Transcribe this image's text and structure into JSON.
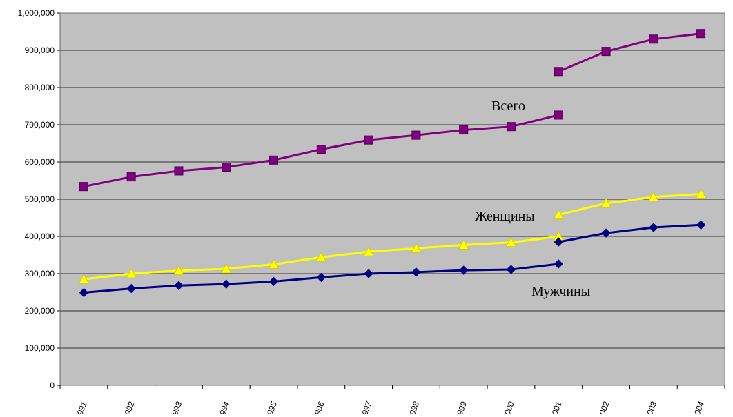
{
  "chart_data": {
    "type": "line",
    "title": "",
    "xlabel": "",
    "ylabel": "",
    "ylim": [
      0,
      1000000
    ],
    "y_ticks": [
      0,
      100000,
      200000,
      300000,
      400000,
      500000,
      600000,
      700000,
      800000,
      900000,
      1000000
    ],
    "y_tick_labels": [
      "0",
      "100,000",
      "200,000",
      "300,000",
      "400,000",
      "500,000",
      "600,000",
      "700,000",
      "800,000",
      "900,000",
      "1,000,000"
    ],
    "categories": [
      "1991",
      "1992",
      "1993",
      "1994",
      "1995",
      "1996",
      "1997",
      "1998",
      "1999",
      "2000",
      "2001",
      "2002",
      "2003",
      "2004"
    ],
    "grid": "horizontal",
    "legend": "none",
    "plot_background": "#c0c0c0",
    "series": [
      {
        "name": "Всего",
        "color": "#800080",
        "marker": "square",
        "segments": [
          {
            "x": [
              "1991",
              "1992",
              "1993",
              "1994",
              "1995",
              "1996",
              "1997",
              "1998",
              "1999",
              "2000",
              "2001"
            ],
            "values": [
              534000,
              560000,
              576000,
              586000,
              605000,
              634000,
              659000,
              672000,
              686000,
              695000,
              726000
            ]
          },
          {
            "x": [
              "2001",
              "2002",
              "2003",
              "2004"
            ],
            "values": [
              843000,
              897000,
              930000,
              945000
            ]
          }
        ]
      },
      {
        "name": "Женщины",
        "color": "#ffff00",
        "marker": "triangle",
        "segments": [
          {
            "x": [
              "1991",
              "1992",
              "1993",
              "1994",
              "1995",
              "1996",
              "1997",
              "1998",
              "1999",
              "2000",
              "2001"
            ],
            "values": [
              285000,
              300000,
              308000,
              313000,
              325000,
              344000,
              359000,
              368000,
              377000,
              384000,
              400000
            ]
          },
          {
            "x": [
              "2001",
              "2002",
              "2003",
              "2004"
            ],
            "values": [
              458000,
              489000,
              506000,
              514000
            ]
          }
        ]
      },
      {
        "name": "Мужчины",
        "color": "#000080",
        "marker": "diamond",
        "segments": [
          {
            "x": [
              "1991",
              "1992",
              "1993",
              "1994",
              "1995",
              "1996",
              "1997",
              "1998",
              "1999",
              "2000",
              "2001"
            ],
            "values": [
              249000,
              260000,
              268000,
              272000,
              279000,
              290000,
              300000,
              304000,
              309000,
              311000,
              326000
            ]
          },
          {
            "x": [
              "2001",
              "2002",
              "2003",
              "2004"
            ],
            "values": [
              385000,
              409000,
              424000,
              431000
            ]
          }
        ]
      }
    ],
    "annotations": [
      {
        "text": "Всего",
        "series": "Всего"
      },
      {
        "text": "Женщины",
        "series": "Женщины"
      },
      {
        "text": "Мужчины",
        "series": "Мужчины"
      }
    ]
  }
}
